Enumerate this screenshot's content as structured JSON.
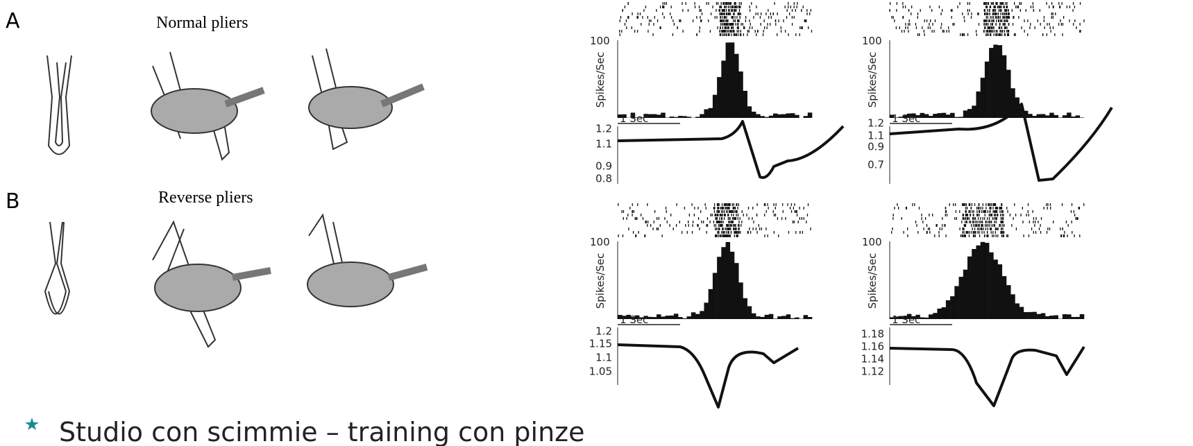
{
  "panels": [
    {
      "letter": "A",
      "title": "Normal pliers"
    },
    {
      "letter": "B",
      "title": "Reverse pliers"
    }
  ],
  "recordings": [
    {
      "rate_label": "Spikes/Sec",
      "rate_max": "100",
      "time_scale": "1 Sec",
      "force_ticks": [
        "1.2",
        "1.1",
        "0.9",
        "0.8"
      ]
    },
    {
      "rate_label": "Spikes/Sec",
      "rate_max": "100",
      "time_scale": "1 Sec",
      "force_ticks": [
        "1.2",
        "1.1",
        "0.9",
        "0.7"
      ]
    },
    {
      "rate_label": "Spikes/Sec",
      "rate_max": "100",
      "time_scale": "1 Sec",
      "force_ticks": [
        "1.2",
        "1.15",
        "1.1",
        "1.05"
      ]
    },
    {
      "rate_label": "Spikes/Sec",
      "rate_max": "100",
      "time_scale": "1 Sec",
      "force_ticks": [
        "1.18",
        "1.16",
        "1.14",
        "1.12"
      ]
    }
  ],
  "caption": "Studio con scimmie – training con pinze"
}
